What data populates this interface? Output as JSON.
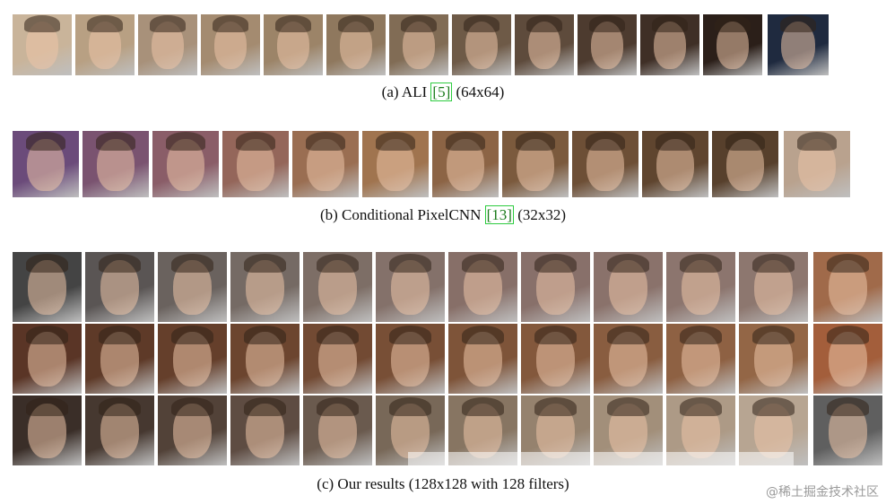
{
  "captions": {
    "a_prefix": "(a) ALI ",
    "a_cite": "[5]",
    "a_suffix": " (64x64)",
    "b_prefix": "(b) Conditional PixelCNN ",
    "b_cite": "[13]",
    "b_suffix": " (32x32)",
    "c_text": "(c) Our results (128x128 with 128 filters)"
  },
  "watermark": "@稀土掘金技术社区",
  "rows": {
    "ali": [
      "#c9b49a",
      "#b8a083",
      "#a8917a",
      "#a48b70",
      "#9c8468",
      "#8f785e",
      "#816c55",
      "#6e5a47",
      "#5e4b3c",
      "#4d3b2f",
      "#3f2f26",
      "#2b1f19",
      "#1f2a3f"
    ],
    "pixelcnn": [
      "#6b4b7a",
      "#7a5370",
      "#8a5d68",
      "#94665a",
      "#9a6e52",
      "#a0744f",
      "#8c6445",
      "#7b5a3d",
      "#6d4f36",
      "#5f452f",
      "#57402c",
      "#b9a28e"
    ],
    "ours1": [
      "#444444",
      "#5a5554",
      "#6a625e",
      "#756a64",
      "#7d6e66",
      "#84716a",
      "#876f68",
      "#88706a",
      "#8a726b",
      "#8c756e",
      "#8d776f",
      "#a06a4a"
    ],
    "ours2": [
      "#5a3526",
      "#5e3a28",
      "#653f2b",
      "#6c452f",
      "#724a33",
      "#784f36",
      "#7e5439",
      "#83583c",
      "#895d40",
      "#8e6143",
      "#936646",
      "#a35e3b"
    ],
    "ours3": [
      "#3a2e28",
      "#463830",
      "#524238",
      "#5e4c42",
      "#6a5a4e",
      "#786858",
      "#877562",
      "#95826e",
      "#a28f7a",
      "#ad9a86",
      "#b7a592",
      "#5f5f5f"
    ]
  }
}
